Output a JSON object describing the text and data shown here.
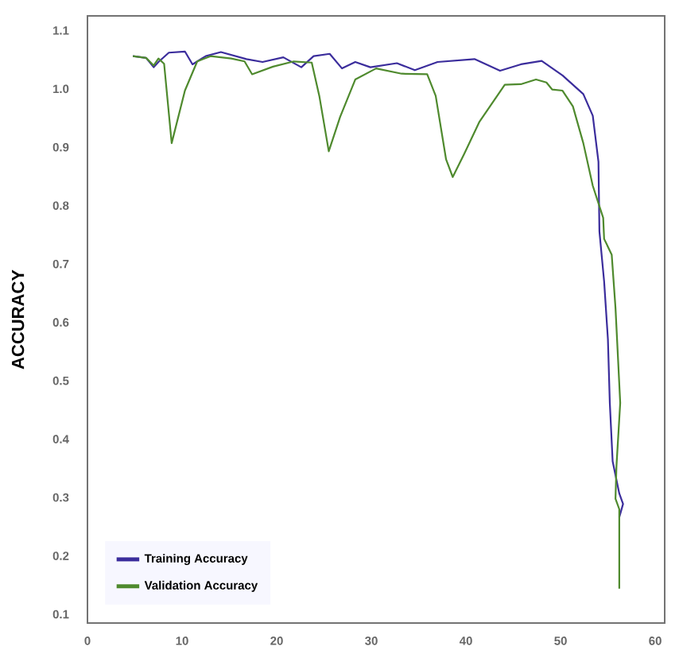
{
  "chart_data": {
    "type": "line",
    "ylabel": "ACCURACY",
    "xlim": [
      0,
      61
    ],
    "ylim": [
      0.085,
      1.125
    ],
    "xticks": [
      0,
      10,
      20,
      30,
      40,
      50,
      60
    ],
    "yticks": [
      0.1,
      0.2,
      0.3,
      0.4,
      0.5,
      0.6,
      0.7,
      0.8,
      0.9,
      {
        "value": 1.0,
        "label": "1.0"
      },
      1.1
    ],
    "grid": false,
    "legend": "bottom left",
    "marker": "none",
    "line_style": "solid",
    "series": [
      {
        "name": "Training Accuracy",
        "color": "#3b2d9c",
        "x": [
          4.8,
          6.2,
          7.0,
          7.5,
          8.6,
          10.3,
          11.1,
          12.5,
          14.1,
          16.8,
          18.5,
          20.7,
          22.6,
          23.9,
          25.6,
          26.9,
          28.3,
          29.9,
          32.7,
          34.6,
          37.0,
          40.9,
          43.6,
          45.8,
          48.0,
          50.2,
          52.4,
          53.4,
          54.0,
          54.1,
          54.6,
          55.0,
          55.2,
          55.5,
          56.2,
          56.6,
          56.2
        ],
        "values": [
          1.056,
          1.053,
          1.037,
          1.046,
          1.062,
          1.064,
          1.042,
          1.056,
          1.063,
          1.051,
          1.046,
          1.054,
          1.037,
          1.056,
          1.06,
          1.035,
          1.046,
          1.037,
          1.044,
          1.032,
          1.046,
          1.051,
          1.031,
          1.042,
          1.048,
          1.023,
          0.991,
          0.954,
          0.875,
          0.756,
          0.67,
          0.571,
          0.462,
          0.362,
          0.307,
          0.289,
          0.266
        ]
      },
      {
        "name": "Validation Accuracy",
        "color": "#4f8a2e",
        "x": [
          4.8,
          6.2,
          7.0,
          7.5,
          8.1,
          8.9,
          10.3,
          11.6,
          13.0,
          15.2,
          16.6,
          17.4,
          19.6,
          21.8,
          23.7,
          24.5,
          25.5,
          26.7,
          28.3,
          30.5,
          33.2,
          35.9,
          36.8,
          37.9,
          38.6,
          39.8,
          41.4,
          44.1,
          45.8,
          47.4,
          48.5,
          49.1,
          50.2,
          51.3,
          52.4,
          53.4,
          54.5,
          54.6,
          55.4,
          55.8,
          56.3,
          55.9,
          55.8,
          56.2,
          56.2
        ],
        "values": [
          1.056,
          1.053,
          1.04,
          1.052,
          1.043,
          0.907,
          0.997,
          1.047,
          1.056,
          1.052,
          1.047,
          1.025,
          1.038,
          1.047,
          1.045,
          0.988,
          0.893,
          0.952,
          1.016,
          1.035,
          1.026,
          1.025,
          0.988,
          0.879,
          0.849,
          0.888,
          0.943,
          1.007,
          1.008,
          1.016,
          1.011,
          0.999,
          0.997,
          0.97,
          0.907,
          0.834,
          0.779,
          0.743,
          0.716,
          0.625,
          0.462,
          0.353,
          0.298,
          0.28,
          0.144
        ]
      }
    ]
  }
}
